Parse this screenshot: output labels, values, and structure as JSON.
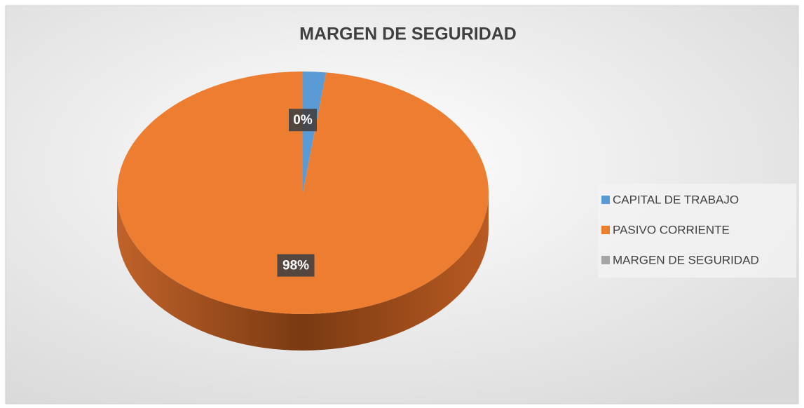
{
  "chart_data": {
    "type": "pie",
    "title": "MARGEN DE SEGURIDAD",
    "categories": [
      "CAPITAL DE TRABAJO",
      "PASIVO CORRIENTE",
      "MARGEN DE SEGURIDAD"
    ],
    "values": [
      2,
      98,
      0
    ],
    "value_labels": [
      null,
      "98%",
      "0%"
    ],
    "colors": [
      "#5b9bd5",
      "#ed7d31",
      "#a5a5a5"
    ],
    "legend": "right"
  }
}
